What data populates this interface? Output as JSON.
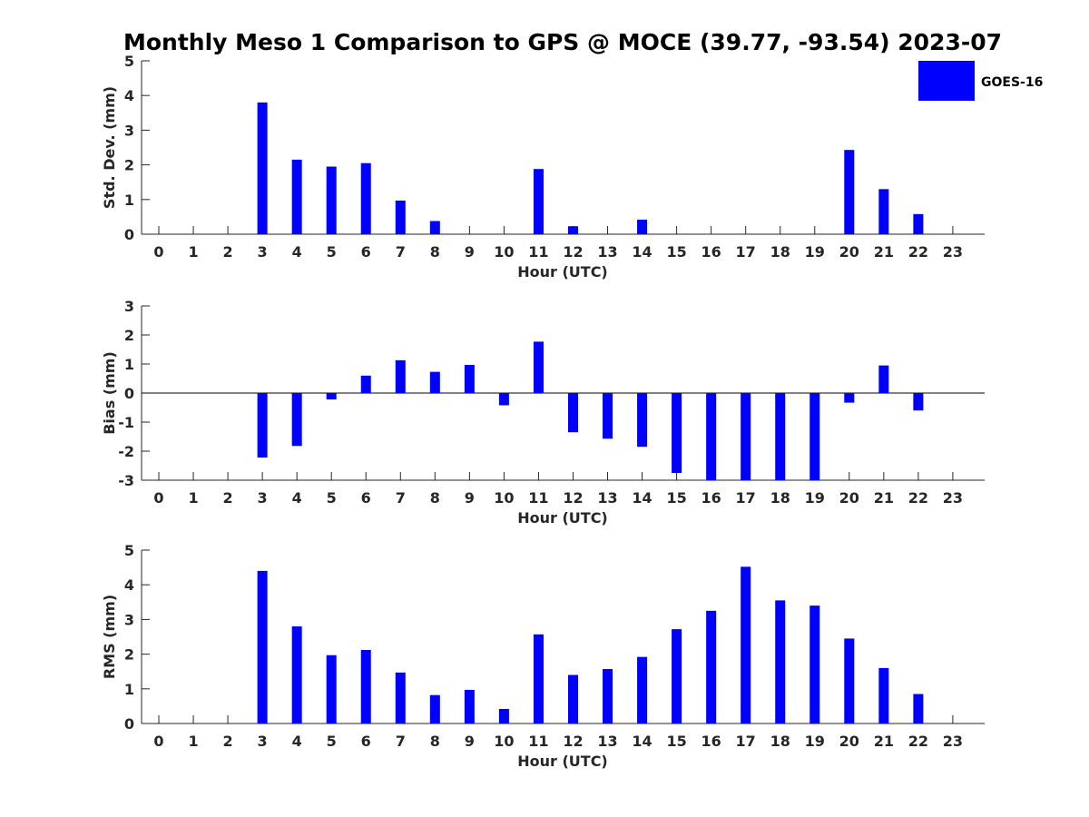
{
  "title": "Monthly Meso 1 Comparison to GPS @ MOCE (39.77, -93.54) 2023-07",
  "colors": {
    "bar": "#0000ff",
    "axis": "#262626",
    "background": "#ffffff"
  },
  "legend": {
    "label": "GOES-16",
    "placement": "top-right"
  },
  "chart_data": [
    {
      "type": "bar",
      "name": "std-dev",
      "xlabel": "Hour (UTC)",
      "ylabel": "Std. Dev. (mm)",
      "ylim": [
        0,
        5
      ],
      "yticks": [
        0,
        1,
        2,
        3,
        4,
        5
      ],
      "categories": [
        0,
        1,
        2,
        3,
        4,
        5,
        6,
        7,
        8,
        9,
        10,
        11,
        12,
        13,
        14,
        15,
        16,
        17,
        18,
        19,
        20,
        21,
        22,
        23
      ],
      "values": [
        null,
        null,
        null,
        3.8,
        2.15,
        1.95,
        2.05,
        0.97,
        0.38,
        null,
        null,
        1.88,
        0.23,
        null,
        0.42,
        null,
        null,
        null,
        null,
        null,
        2.43,
        1.3,
        0.58,
        null
      ]
    },
    {
      "type": "bar",
      "name": "bias",
      "xlabel": "Hour (UTC)",
      "ylabel": "Bias (mm)",
      "ylim": [
        -3,
        3
      ],
      "yticks": [
        -3,
        -2,
        -1,
        0,
        1,
        2,
        3
      ],
      "zero_line": true,
      "categories": [
        0,
        1,
        2,
        3,
        4,
        5,
        6,
        7,
        8,
        9,
        10,
        11,
        12,
        13,
        14,
        15,
        16,
        17,
        18,
        19,
        20,
        21,
        22,
        23
      ],
      "values": [
        null,
        null,
        null,
        -2.22,
        -1.82,
        -0.22,
        0.6,
        1.13,
        0.73,
        0.97,
        -0.42,
        1.77,
        -1.35,
        -1.57,
        -1.85,
        -2.75,
        -3.0,
        -3.0,
        -3.0,
        -3.0,
        -0.33,
        0.95,
        -0.6,
        null
      ]
    },
    {
      "type": "bar",
      "name": "rms",
      "xlabel": "Hour (UTC)",
      "ylabel": "RMS (mm)",
      "ylim": [
        0,
        5
      ],
      "yticks": [
        0,
        1,
        2,
        3,
        4,
        5
      ],
      "categories": [
        0,
        1,
        2,
        3,
        4,
        5,
        6,
        7,
        8,
        9,
        10,
        11,
        12,
        13,
        14,
        15,
        16,
        17,
        18,
        19,
        20,
        21,
        22,
        23
      ],
      "values": [
        null,
        null,
        null,
        4.4,
        2.8,
        1.97,
        2.12,
        1.47,
        0.82,
        0.97,
        0.42,
        2.57,
        1.4,
        1.57,
        1.92,
        2.72,
        3.25,
        4.52,
        3.55,
        3.4,
        2.45,
        1.6,
        0.85,
        null
      ]
    }
  ]
}
